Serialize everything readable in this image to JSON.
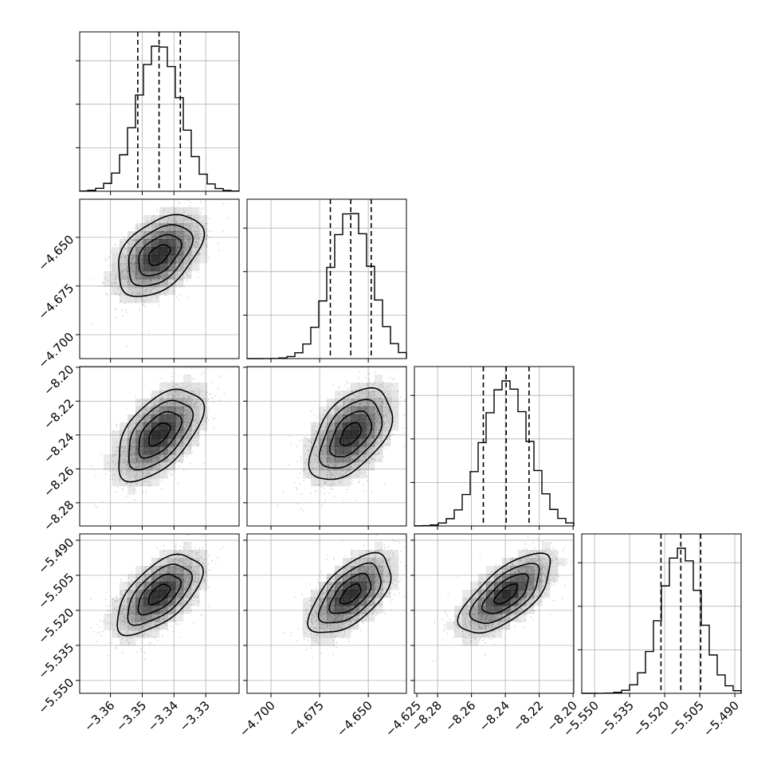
{
  "chart_data": {
    "type": "corner",
    "n_params": 4,
    "params": [
      {
        "ticks": [
          "−3.36",
          "−3.35",
          "−3.34",
          "−3.33"
        ],
        "tick_values": [
          -3.36,
          -3.35,
          -3.34,
          -3.33
        ],
        "range": [
          -3.3697,
          -3.3195
        ],
        "mean": -3.3447,
        "sigma": 0.0067,
        "quantiles": [
          -3.3514,
          -3.3447,
          -3.338
        ]
      },
      {
        "ticks": [
          "−4.700",
          "−4.675",
          "−4.650",
          "−4.625"
        ],
        "tick_values": [
          -4.7,
          -4.675,
          -4.65,
          -4.625
        ],
        "range": [
          -4.7123,
          -4.6304
        ],
        "mean": -4.659,
        "sigma": 0.0105,
        "quantiles": [
          -4.6695,
          -4.659,
          -4.6485
        ]
      },
      {
        "ticks": [
          "−8.28",
          "−8.26",
          "−8.24",
          "−8.22",
          "−8.20"
        ],
        "tick_values": [
          -8.28,
          -8.26,
          -8.24,
          -8.22,
          -8.2
        ],
        "range": [
          -8.2937,
          -8.1996
        ],
        "mean": -8.2395,
        "sigma": 0.0135,
        "quantiles": [
          -8.253,
          -8.2395,
          -8.226
        ]
      },
      {
        "ticks": [
          "−5.550",
          "−5.535",
          "−5.520",
          "−5.505",
          "−5.490"
        ],
        "tick_values": [
          -5.55,
          -5.535,
          -5.52,
          -5.505,
          -5.49
        ],
        "range": [
          -5.5555,
          -5.4873
        ],
        "mean": -5.5131,
        "sigma": 0.0085,
        "quantiles": [
          -5.5216,
          -5.5131,
          -5.5046
        ]
      }
    ],
    "correlations": {
      "1-0": 0.45,
      "2-0": 0.55,
      "2-1": 0.5,
      "3-0": 0.6,
      "3-1": 0.6,
      "3-2": 0.68
    },
    "hist_peak_counts": [
      1.0,
      1.0,
      1.0,
      1.0
    ],
    "grid": true,
    "colors": {
      "line": "#000000",
      "dashed": "#000000",
      "scatter": "#b0b0b0",
      "density": "#000000",
      "grid": "#b0b0b0"
    }
  }
}
